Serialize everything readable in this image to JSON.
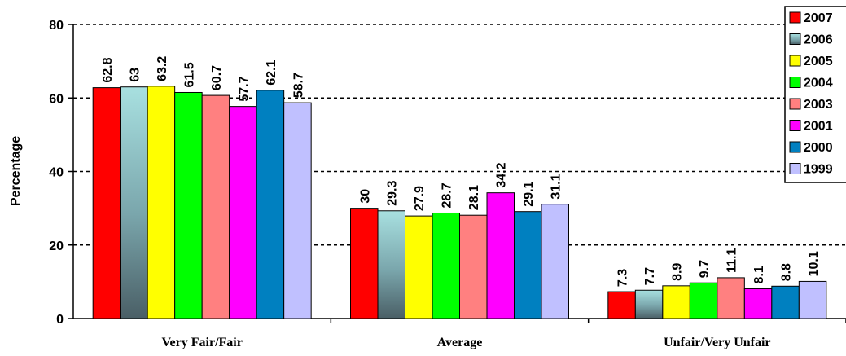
{
  "chart_data": {
    "type": "bar",
    "title": "",
    "xlabel": "",
    "ylabel": "Percentage",
    "ylim": [
      0,
      80
    ],
    "yticks": [
      "0",
      "20",
      "40",
      "60",
      "80"
    ],
    "grid": "horizontal dashed",
    "legend_position": "top-right",
    "categories": [
      "Very Fair/Fair",
      "Average",
      "Unfair/Very Unfair"
    ],
    "series": [
      {
        "name": "2007",
        "color": "#ff0000",
        "values": [
          62.8,
          30,
          7.3
        ],
        "labels": [
          "62.8",
          "30",
          "7.3"
        ]
      },
      {
        "name": "2006",
        "color": "#99d6d6",
        "gradient_to": "#4d6670",
        "values": [
          63,
          29.3,
          7.7
        ],
        "labels": [
          "63",
          "29.3",
          "7.7"
        ]
      },
      {
        "name": "2005",
        "color": "#ffff00",
        "values": [
          63.2,
          27.9,
          8.9
        ],
        "labels": [
          "63.2",
          "27.9",
          "8.9"
        ]
      },
      {
        "name": "2004",
        "color": "#00ff00",
        "values": [
          61.5,
          28.7,
          9.7
        ],
        "labels": [
          "61.5",
          "28.7",
          "9.7"
        ]
      },
      {
        "name": "2003",
        "color": "#ff8080",
        "values": [
          60.7,
          28.1,
          11.1
        ],
        "labels": [
          "60.7",
          "28.1",
          "11.1"
        ]
      },
      {
        "name": "2001",
        "color": "#ff00ff",
        "values": [
          57.7,
          34.2,
          8.1
        ],
        "labels": [
          "57.7",
          "34.2",
          "8.1"
        ]
      },
      {
        "name": "2000",
        "color": "#0080c0",
        "values": [
          62.1,
          29.1,
          8.8
        ],
        "labels": [
          "62.1",
          "29.1",
          "8.8"
        ]
      },
      {
        "name": "1999",
        "color": "#c0c0ff",
        "values": [
          58.7,
          31.1,
          10.1
        ],
        "labels": [
          "58.7",
          "31.1",
          "10.1"
        ]
      }
    ]
  }
}
